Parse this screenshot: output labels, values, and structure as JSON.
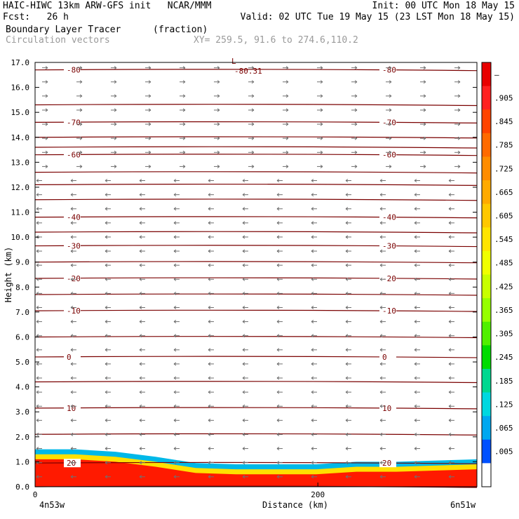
{
  "header": {
    "line1_left": "HAIC-HIWC 13km ARW-GFS init   NCAR/MMM",
    "line1_right": "Init: 00 UTC Mon 18 May 15",
    "line2_left": "Fcst:   26 h",
    "line2_right": "Valid: 02 UTC Tue 19 May 15 (23 LST Mon 18 May 15)",
    "field_name": "Boundary Layer Tracer",
    "field_units": "(fraction)",
    "vector_name": "Circulation vectors",
    "xy_info": "XY= 259.5, 91.6 to 274.6,110.2"
  },
  "chart_data": {
    "type": "heatmap",
    "title": "Boundary Layer Tracer",
    "ylabel": "Height (km)",
    "xlabel": "Distance (km)",
    "x_start_label": "4n53w",
    "x_end_label": "6n51w",
    "xticks": [
      "0",
      "200"
    ],
    "ylim": [
      0,
      17
    ],
    "yticks": [
      "0.0",
      "1.0",
      "2.0",
      "3.0",
      "4.0",
      "5.0",
      "6.0",
      "7.0",
      "8.0",
      "9.0",
      "10.0",
      "11.0",
      "12.0",
      "13.0",
      "14.0",
      "15.0",
      "16.0",
      "17.0"
    ],
    "colorbar": {
      "labels": [
        "–",
        ".905",
        ".845",
        ".785",
        ".725",
        ".665",
        ".605",
        ".545",
        ".485",
        ".425",
        ".365",
        ".305",
        ".245",
        ".185",
        ".125",
        ".065",
        ".005"
      ],
      "colors": [
        "#e80000",
        "#ff2020",
        "#ff4400",
        "#ff6a00",
        "#ff8c00",
        "#ffaa00",
        "#ffc800",
        "#ffe400",
        "#f0ff00",
        "#c8ff00",
        "#96ff00",
        "#50f000",
        "#00dc00",
        "#00d890",
        "#00d8e0",
        "#00a8f0",
        "#0050ff",
        "#ffffff"
      ]
    },
    "isotherms": [
      {
        "value": "-80",
        "height": 16.7
      },
      {
        "value": "-70",
        "height": 14.6
      },
      {
        "value": "-60",
        "height": 13.3
      },
      {
        "value": "-40",
        "height": 10.8
      },
      {
        "value": "-30",
        "height": 9.65
      },
      {
        "value": "-20",
        "height": 8.35
      },
      {
        "value": "-10",
        "height": 7.05
      },
      {
        "value": "0",
        "height": 5.2
      },
      {
        "value": "10",
        "height": 3.15
      },
      {
        "value": "20",
        "height": 0.95
      }
    ],
    "extra_contour_heights": [
      0.0,
      2.1,
      4.2,
      6.0,
      7.7,
      9.0,
      10.2,
      11.5,
      12.1,
      12.6,
      13.6,
      14.0,
      15.3
    ],
    "tracer_top_km": [
      1.5,
      1.5,
      1.4,
      1.2,
      0.95,
      0.9,
      0.9,
      0.9,
      1.0,
      1.0,
      1.05,
      1.1
    ],
    "min_label": "L",
    "min_value": "-80.31"
  },
  "colors": {
    "contour": "#7a0000",
    "vector": "#707070",
    "frame": "#000000"
  }
}
